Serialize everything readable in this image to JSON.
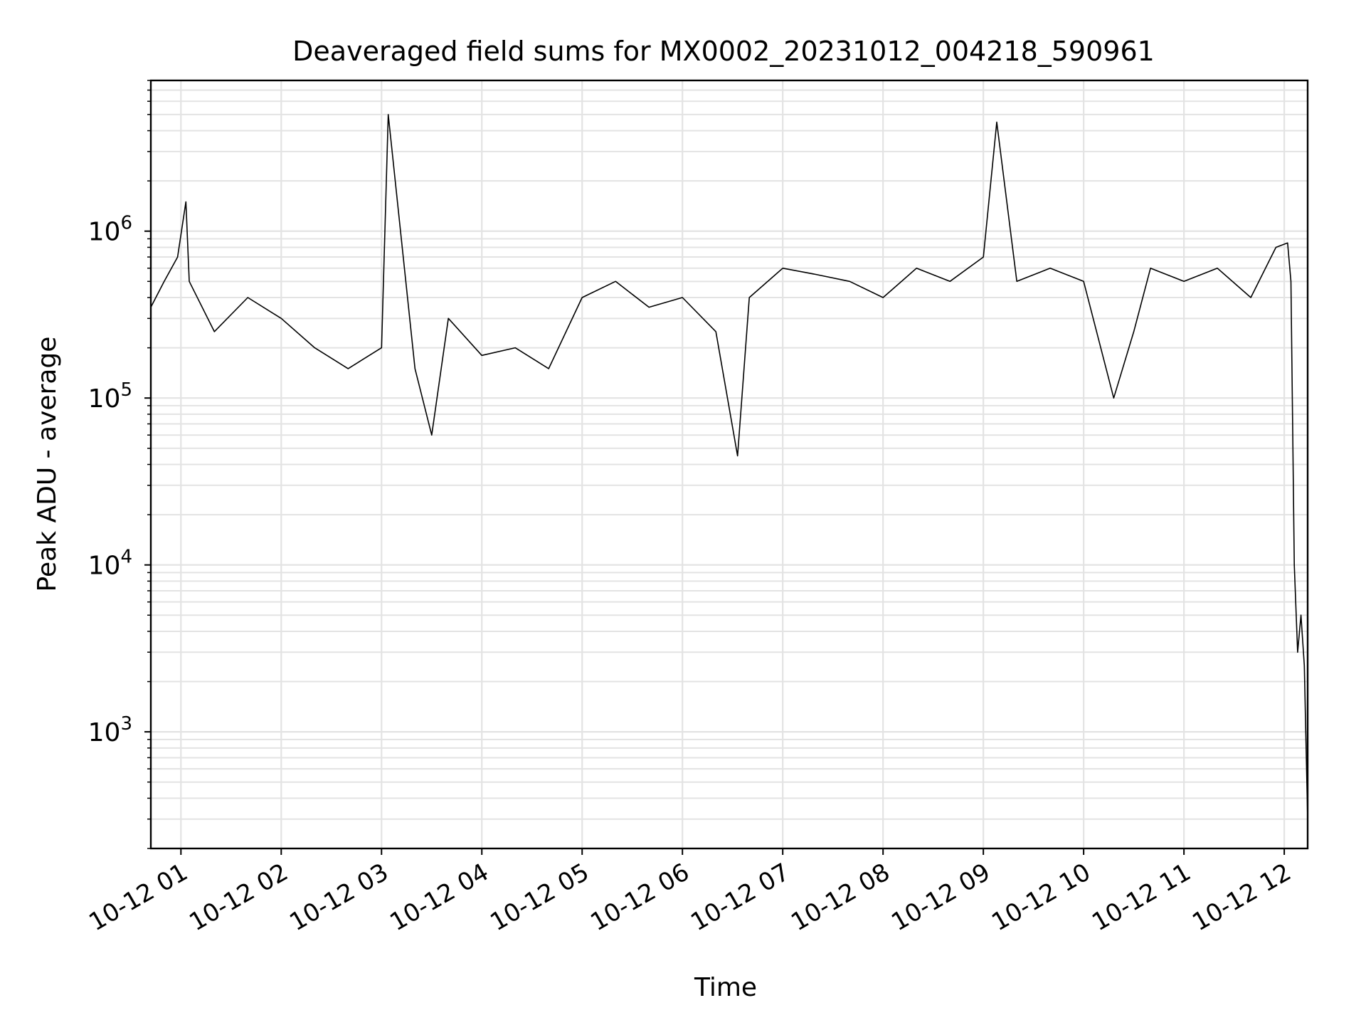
{
  "chart_data": {
    "type": "line",
    "title": "Deaveraged field sums for MX0002_20231012_004218_590961",
    "xlabel": "Time",
    "ylabel": "Peak ADU - average",
    "y_scale": "log",
    "grid": true,
    "line_color": "#000000",
    "x_range": [
      "2023-10-12 00:42",
      "2023-10-12 12:14"
    ],
    "ylim": [
      200,
      8000000
    ],
    "x_ticks": [
      "2023-10-12 01:00",
      "2023-10-12 02:00",
      "2023-10-12 03:00",
      "2023-10-12 04:00",
      "2023-10-12 05:00",
      "2023-10-12 06:00",
      "2023-10-12 07:00",
      "2023-10-12 08:00",
      "2023-10-12 09:00",
      "2023-10-12 10:00",
      "2023-10-12 11:00",
      "2023-10-12 12:00"
    ],
    "x_tick_labels": [
      "10-12 01",
      "10-12 02",
      "10-12 03",
      "10-12 04",
      "10-12 05",
      "10-12 06",
      "10-12 07",
      "10-12 08",
      "10-12 09",
      "10-12 10",
      "10-12 11",
      "10-12 12"
    ],
    "y_ticks": [
      1000,
      10000,
      100000,
      1000000
    ],
    "y_tick_labels": [
      {
        "base": "10",
        "exp": "3"
      },
      {
        "base": "10",
        "exp": "4"
      },
      {
        "base": "10",
        "exp": "5"
      },
      {
        "base": "10",
        "exp": "6"
      }
    ],
    "series": [
      {
        "x": [
          "2023-10-12 00:42",
          "2023-10-12 00:50",
          "2023-10-12 00:58",
          "2023-10-12 01:03",
          "2023-10-12 01:05",
          "2023-10-12 01:20",
          "2023-10-12 01:40",
          "2023-10-12 02:00",
          "2023-10-12 02:20",
          "2023-10-12 02:40",
          "2023-10-12 03:00",
          "2023-10-12 03:04",
          "2023-10-12 03:20",
          "2023-10-12 03:30",
          "2023-10-12 03:40",
          "2023-10-12 04:00",
          "2023-10-12 04:20",
          "2023-10-12 04:40",
          "2023-10-12 05:00",
          "2023-10-12 05:20",
          "2023-10-12 05:40",
          "2023-10-12 06:00",
          "2023-10-12 06:20",
          "2023-10-12 06:33",
          "2023-10-12 06:40",
          "2023-10-12 07:00",
          "2023-10-12 07:20",
          "2023-10-12 07:40",
          "2023-10-12 08:00",
          "2023-10-12 08:20",
          "2023-10-12 08:40",
          "2023-10-12 09:00",
          "2023-10-12 09:08",
          "2023-10-12 09:20",
          "2023-10-12 09:40",
          "2023-10-12 10:00",
          "2023-10-12 10:18",
          "2023-10-12 10:30",
          "2023-10-12 10:40",
          "2023-10-12 11:00",
          "2023-10-12 11:20",
          "2023-10-12 11:40",
          "2023-10-12 11:55",
          "2023-10-12 12:02",
          "2023-10-12 12:04",
          "2023-10-12 12:06",
          "2023-10-12 12:08",
          "2023-10-12 12:10",
          "2023-10-12 12:12",
          "2023-10-12 12:14"
        ],
        "y": [
          350000,
          500000,
          700000,
          1500000,
          500000,
          250000,
          400000,
          300000,
          200000,
          150000,
          200000,
          5000000,
          150000,
          60000,
          300000,
          180000,
          200000,
          150000,
          400000,
          500000,
          350000,
          400000,
          250000,
          45000,
          400000,
          600000,
          550000,
          500000,
          400000,
          600000,
          500000,
          700000,
          4500000,
          500000,
          600000,
          500000,
          100000,
          250000,
          600000,
          500000,
          600000,
          400000,
          800000,
          850000,
          500000,
          10000,
          3000,
          5000,
          2500,
          300
        ]
      }
    ]
  }
}
